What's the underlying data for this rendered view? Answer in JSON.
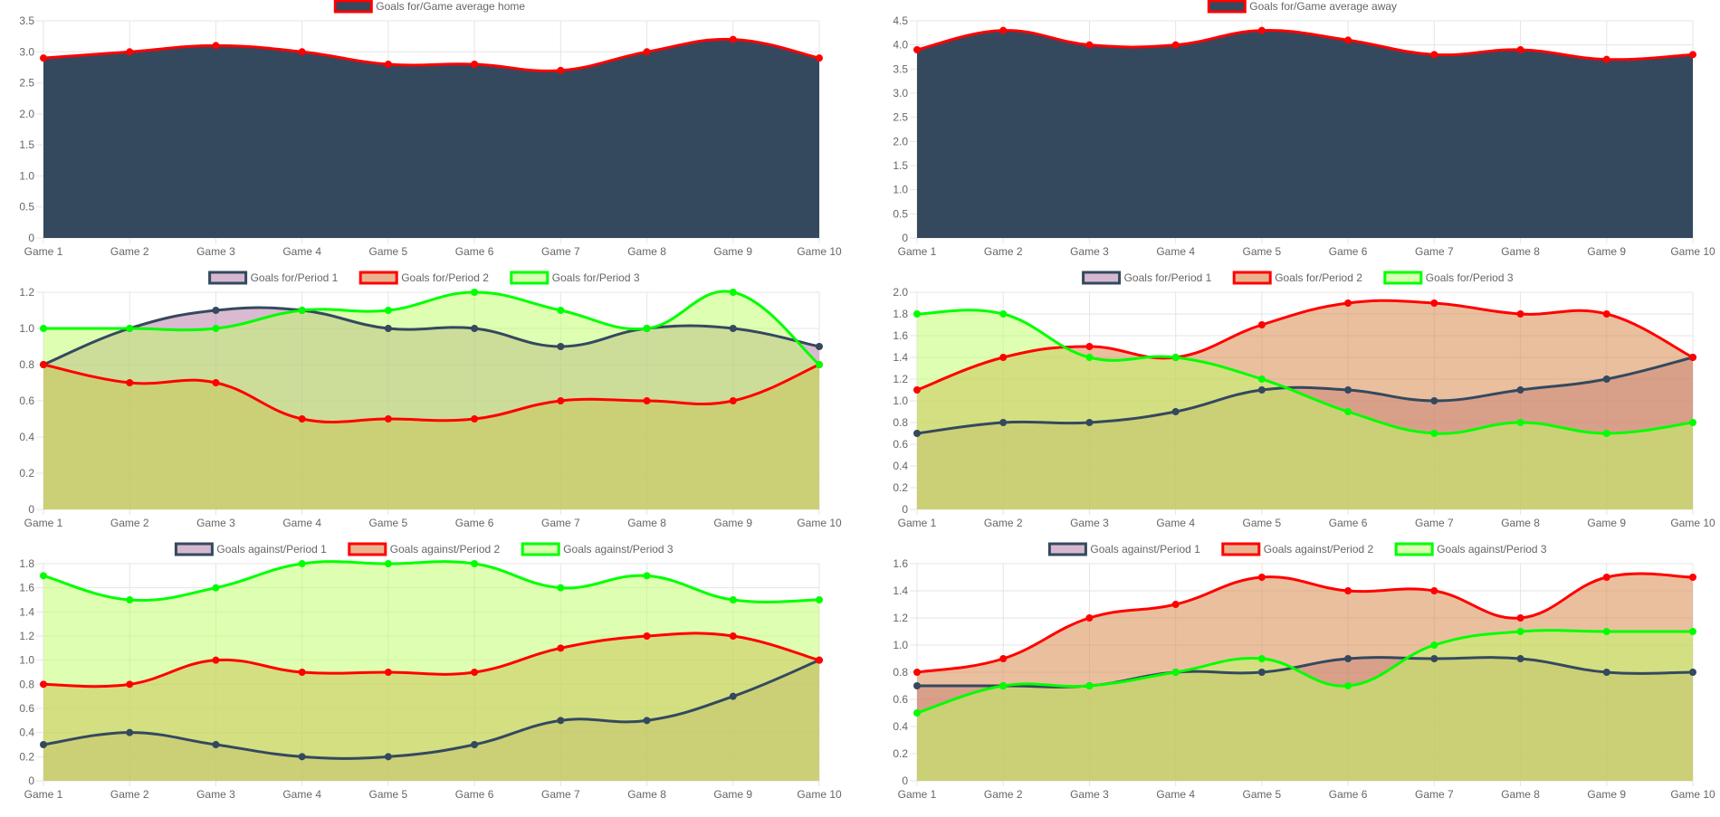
{
  "colors": {
    "navy_fill": "#34495e",
    "navy_line": "#34495e",
    "red": "#ff0000",
    "green": "#00ff00",
    "p1_fill": "rgba(172,102,152,0.45)",
    "p2_fill": "rgba(217,139,79,0.55)",
    "p3_fill": "rgba(190,255,100,0.5)",
    "p1_swatch": "#d5b8cf",
    "p2_swatch": "#e8b48f",
    "p3_swatch": "#d8ffb0"
  },
  "chart_data": [
    {
      "type": "area",
      "categories": [
        "Game 1",
        "Game 2",
        "Game 3",
        "Game 4",
        "Game 5",
        "Game 6",
        "Game 7",
        "Game 8",
        "Game 9",
        "Game 10"
      ],
      "ylim": [
        0,
        3.5
      ],
      "yticks": [
        "0",
        "0.5",
        "1.0",
        "1.5",
        "2.0",
        "2.5",
        "3.0",
        "3.5"
      ],
      "legend_position": "top",
      "series": [
        {
          "name": "Goals for/Game average home",
          "values": [
            2.9,
            3.0,
            3.1,
            3.0,
            2.8,
            2.8,
            2.7,
            3.0,
            3.2,
            2.9
          ],
          "fill": "#34495e",
          "line": "#ff0000",
          "point": "#ff0000",
          "swatch": "#34495e",
          "swatch_border": "#ff0000"
        }
      ]
    },
    {
      "type": "area",
      "categories": [
        "Game 1",
        "Game 2",
        "Game 3",
        "Game 4",
        "Game 5",
        "Game 6",
        "Game 7",
        "Game 8",
        "Game 9",
        "Game 10"
      ],
      "ylim": [
        0,
        4.5
      ],
      "yticks": [
        "0",
        "0.5",
        "1.0",
        "1.5",
        "2.0",
        "2.5",
        "3.0",
        "3.5",
        "4.0",
        "4.5"
      ],
      "legend_position": "top",
      "series": [
        {
          "name": "Goals for/Game average away",
          "values": [
            3.9,
            4.3,
            4.0,
            4.0,
            4.3,
            4.1,
            3.8,
            3.9,
            3.7,
            3.8
          ],
          "fill": "#34495e",
          "line": "#ff0000",
          "point": "#ff0000",
          "swatch": "#34495e",
          "swatch_border": "#ff0000"
        }
      ]
    },
    {
      "type": "area",
      "categories": [
        "Game 1",
        "Game 2",
        "Game 3",
        "Game 4",
        "Game 5",
        "Game 6",
        "Game 7",
        "Game 8",
        "Game 9",
        "Game 10"
      ],
      "ylim": [
        0,
        1.2
      ],
      "yticks": [
        "0",
        "0.2",
        "0.4",
        "0.6",
        "0.8",
        "1.0",
        "1.2"
      ],
      "legend_position": "top",
      "series": [
        {
          "name": "Goals for/Period 1",
          "values": [
            0.8,
            1.0,
            1.1,
            1.1,
            1.0,
            1.0,
            0.9,
            1.0,
            1.0,
            0.9
          ],
          "fill": "rgba(172,102,152,0.45)",
          "line": "#34495e",
          "point": "#34495e",
          "swatch": "#d5b8cf",
          "swatch_border": "#34495e"
        },
        {
          "name": "Goals for/Period 2",
          "values": [
            0.8,
            0.7,
            0.7,
            0.5,
            0.5,
            0.5,
            0.6,
            0.6,
            0.6,
            0.8
          ],
          "fill": "rgba(217,139,79,0.55)",
          "line": "#ff0000",
          "point": "#ff0000",
          "swatch": "#e8b48f",
          "swatch_border": "#ff0000"
        },
        {
          "name": "Goals for/Period 3",
          "values": [
            1.0,
            1.0,
            1.0,
            1.1,
            1.1,
            1.2,
            1.1,
            1.0,
            1.2,
            0.8
          ],
          "fill": "rgba(190,255,100,0.5)",
          "line": "#00ff00",
          "point": "#00ff00",
          "swatch": "#d8ffb0",
          "swatch_border": "#00ff00"
        }
      ]
    },
    {
      "type": "area",
      "categories": [
        "Game 1",
        "Game 2",
        "Game 3",
        "Game 4",
        "Game 5",
        "Game 6",
        "Game 7",
        "Game 8",
        "Game 9",
        "Game 10"
      ],
      "ylim": [
        0,
        2.0
      ],
      "yticks": [
        "0",
        "0.2",
        "0.4",
        "0.6",
        "0.8",
        "1.0",
        "1.2",
        "1.4",
        "1.6",
        "1.8",
        "2.0"
      ],
      "legend_position": "top",
      "series": [
        {
          "name": "Goals for/Period 1",
          "values": [
            0.7,
            0.8,
            0.8,
            0.9,
            1.1,
            1.1,
            1.0,
            1.1,
            1.2,
            1.4
          ],
          "fill": "rgba(172,102,152,0.45)",
          "line": "#34495e",
          "point": "#34495e",
          "swatch": "#d5b8cf",
          "swatch_border": "#34495e"
        },
        {
          "name": "Goals for/Period 2",
          "values": [
            1.1,
            1.4,
            1.5,
            1.4,
            1.7,
            1.9,
            1.9,
            1.8,
            1.8,
            1.4
          ],
          "fill": "rgba(217,139,79,0.55)",
          "line": "#ff0000",
          "point": "#ff0000",
          "swatch": "#e8b48f",
          "swatch_border": "#ff0000"
        },
        {
          "name": "Goals for/Period 3",
          "values": [
            1.8,
            1.8,
            1.4,
            1.4,
            1.2,
            0.9,
            0.7,
            0.8,
            0.7,
            0.8
          ],
          "fill": "rgba(190,255,100,0.5)",
          "line": "#00ff00",
          "point": "#00ff00",
          "swatch": "#d8ffb0",
          "swatch_border": "#00ff00"
        }
      ]
    },
    {
      "type": "area",
      "categories": [
        "Game 1",
        "Game 2",
        "Game 3",
        "Game 4",
        "Game 5",
        "Game 6",
        "Game 7",
        "Game 8",
        "Game 9",
        "Game 10"
      ],
      "ylim": [
        0,
        1.8
      ],
      "yticks": [
        "0",
        "0.2",
        "0.4",
        "0.6",
        "0.8",
        "1.0",
        "1.2",
        "1.4",
        "1.6",
        "1.8"
      ],
      "legend_position": "top",
      "series": [
        {
          "name": "Goals against/Period 1",
          "values": [
            0.3,
            0.4,
            0.3,
            0.2,
            0.2,
            0.3,
            0.5,
            0.5,
            0.7,
            1.0
          ],
          "fill": "rgba(172,102,152,0.45)",
          "line": "#34495e",
          "point": "#34495e",
          "swatch": "#d5b8cf",
          "swatch_border": "#34495e"
        },
        {
          "name": "Goals against/Period 2",
          "values": [
            0.8,
            0.8,
            1.0,
            0.9,
            0.9,
            0.9,
            1.1,
            1.2,
            1.2,
            1.0
          ],
          "fill": "rgba(217,139,79,0.55)",
          "line": "#ff0000",
          "point": "#ff0000",
          "swatch": "#e8b48f",
          "swatch_border": "#ff0000"
        },
        {
          "name": "Goals against/Period 3",
          "values": [
            1.7,
            1.5,
            1.6,
            1.8,
            1.8,
            1.8,
            1.6,
            1.7,
            1.5,
            1.5
          ],
          "fill": "rgba(190,255,100,0.5)",
          "line": "#00ff00",
          "point": "#00ff00",
          "swatch": "#d8ffb0",
          "swatch_border": "#00ff00"
        }
      ]
    },
    {
      "type": "area",
      "categories": [
        "Game 1",
        "Game 2",
        "Game 3",
        "Game 4",
        "Game 5",
        "Game 6",
        "Game 7",
        "Game 8",
        "Game 9",
        "Game 10"
      ],
      "ylim": [
        0,
        1.6
      ],
      "yticks": [
        "0",
        "0.2",
        "0.4",
        "0.6",
        "0.8",
        "1.0",
        "1.2",
        "1.4",
        "1.6"
      ],
      "legend_position": "top",
      "series": [
        {
          "name": "Goals against/Period 1",
          "values": [
            0.7,
            0.7,
            0.7,
            0.8,
            0.8,
            0.9,
            0.9,
            0.9,
            0.8,
            0.8
          ],
          "fill": "rgba(172,102,152,0.45)",
          "line": "#34495e",
          "point": "#34495e",
          "swatch": "#d5b8cf",
          "swatch_border": "#34495e"
        },
        {
          "name": "Goals against/Period 2",
          "values": [
            0.8,
            0.9,
            1.2,
            1.3,
            1.5,
            1.4,
            1.4,
            1.2,
            1.5,
            1.5
          ],
          "fill": "rgba(217,139,79,0.55)",
          "line": "#ff0000",
          "point": "#ff0000",
          "swatch": "#e8b48f",
          "swatch_border": "#ff0000"
        },
        {
          "name": "Goals against/Period 3",
          "values": [
            0.5,
            0.7,
            0.7,
            0.8,
            0.9,
            0.7,
            1.0,
            1.1,
            1.1,
            1.1
          ],
          "fill": "rgba(190,255,100,0.5)",
          "line": "#00ff00",
          "point": "#00ff00",
          "swatch": "#d8ffb0",
          "swatch_border": "#00ff00"
        }
      ]
    }
  ]
}
